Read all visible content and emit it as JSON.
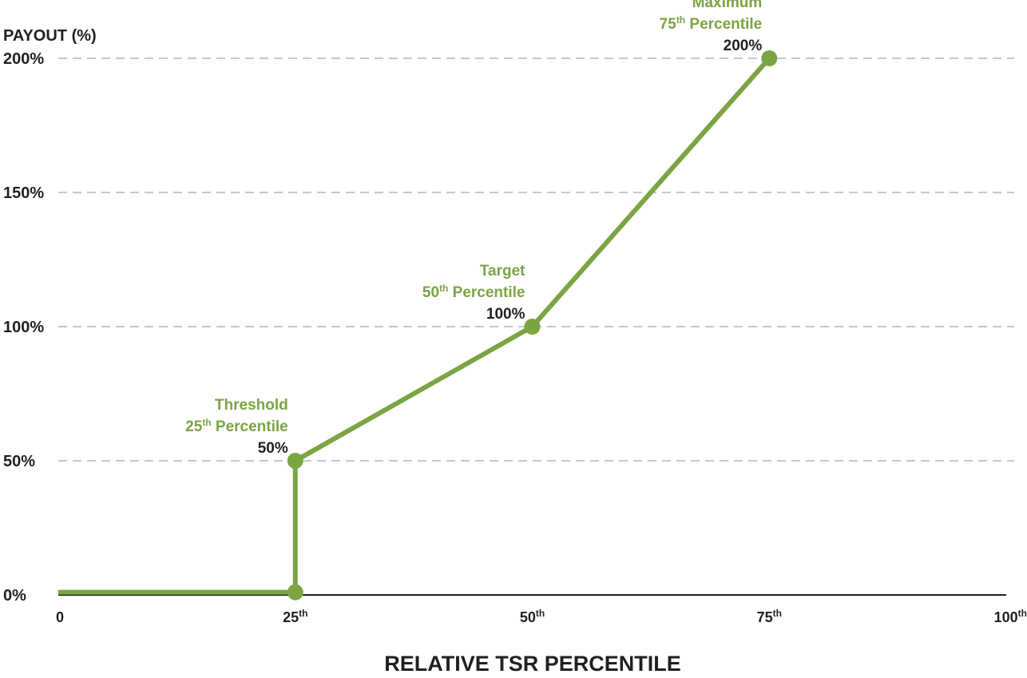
{
  "chart_data": {
    "type": "line",
    "title": "",
    "ylabel": "PAYOUT (%)",
    "xlabel": "RELATIVE TSR PERCENTILE",
    "xlim": [
      0,
      100
    ],
    "ylim": [
      0,
      200
    ],
    "grid": true,
    "line_color": "#7ba443",
    "y_ticks": [
      {
        "value": 0,
        "label": "0%"
      },
      {
        "value": 50,
        "label": "50%"
      },
      {
        "value": 100,
        "label": "100%"
      },
      {
        "value": 150,
        "label": "150%"
      },
      {
        "value": 200,
        "label": "200%"
      }
    ],
    "x_ticks": [
      {
        "value": 0,
        "label": "0",
        "sup": ""
      },
      {
        "value": 25,
        "label": "25",
        "sup": "th"
      },
      {
        "value": 50,
        "label": "50",
        "sup": "th"
      },
      {
        "value": 75,
        "label": "75",
        "sup": "th"
      },
      {
        "value": 100,
        "label": "100",
        "sup": "th"
      }
    ],
    "series": [
      {
        "points": [
          {
            "x": 0,
            "y": 1
          },
          {
            "x": 25,
            "y": 1
          },
          {
            "x": 25,
            "y": 50
          },
          {
            "x": 50,
            "y": 100
          },
          {
            "x": 75,
            "y": 200
          }
        ]
      }
    ],
    "markers": [
      {
        "x": 25,
        "y": 1
      },
      {
        "x": 25,
        "y": 50
      },
      {
        "x": 50,
        "y": 100
      },
      {
        "x": 75,
        "y": 200
      }
    ],
    "annotations": [
      {
        "x": 25,
        "y": 50,
        "name": "Threshold",
        "pct_num": "25",
        "pct_sup": "th",
        "pct_word": " Percentile",
        "value": "50%"
      },
      {
        "x": 50,
        "y": 100,
        "name": "Target",
        "pct_num": "50",
        "pct_sup": "th",
        "pct_word": " Percentile",
        "value": "100%"
      },
      {
        "x": 75,
        "y": 200,
        "name": "Maximum",
        "pct_num": "75",
        "pct_sup": "th",
        "pct_word": " Percentile",
        "value": "200%"
      }
    ]
  }
}
